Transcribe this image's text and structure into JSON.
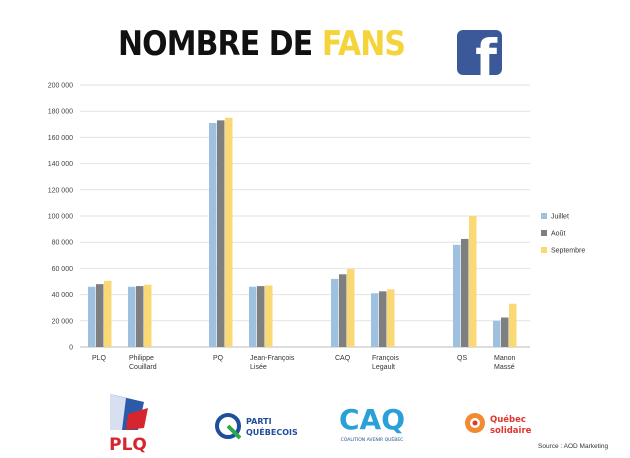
{
  "header": {
    "title_part1": "NOMBRE DE ",
    "title_part2": "FANS",
    "title_highlight_color": "#f5d33a",
    "brand_icon": "facebook-icon",
    "brand_color": "#3b5998"
  },
  "chart_data": {
    "type": "bar",
    "title": "NOMBRE DE FANS",
    "categories": [
      "PLQ",
      "Philippe Couillard",
      "PQ",
      "Jean-François Lisée",
      "CAQ",
      "François Legault",
      "QS",
      "Manon Massé"
    ],
    "category_lines": [
      [
        "PLQ"
      ],
      [
        "Philippe",
        "Couillard"
      ],
      [
        "PQ"
      ],
      [
        "Jean-François",
        "Lisée"
      ],
      [
        "CAQ"
      ],
      [
        "François",
        "Legault"
      ],
      [
        "QS"
      ],
      [
        "Manon",
        "Massé"
      ]
    ],
    "series": [
      {
        "name": "Juillet",
        "color": "#9fc1e0",
        "values": [
          46000,
          46000,
          171000,
          46000,
          52000,
          41000,
          78000,
          20000
        ]
      },
      {
        "name": "Août",
        "color": "#7f7f7f",
        "values": [
          48000,
          46500,
          173000,
          46500,
          55500,
          42500,
          82500,
          22500
        ]
      },
      {
        "name": "Septembre",
        "color": "#fad874",
        "values": [
          50500,
          47500,
          175000,
          47000,
          59500,
          44000,
          100000,
          33000
        ]
      }
    ],
    "ylim": [
      0,
      200000
    ],
    "yticks": [
      "0",
      "20 000",
      "40 000",
      "60 000",
      "80 000",
      "100 000",
      "120 000",
      "140 000",
      "160 000",
      "180 000",
      "200 000"
    ],
    "grid": true,
    "legend_position": "right"
  },
  "logos": {
    "plq": "PLQ",
    "pq_line1": "PARTI",
    "pq_line2": "QUÉBECOIS",
    "caq": "CAQ",
    "caq_sub": "COALITION AVENIR QUÉBEC",
    "qs_line1": "Québec",
    "qs_line2": "solidaire"
  },
  "footer": {
    "source": "Source : AOD Marketing"
  }
}
